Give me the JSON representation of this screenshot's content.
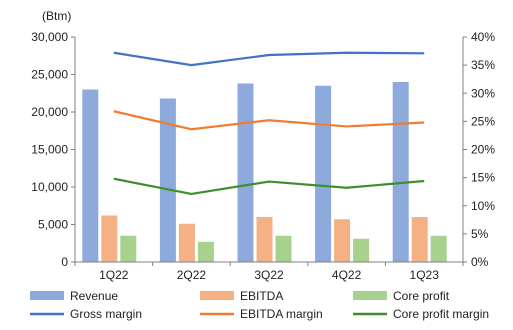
{
  "chart_data": {
    "type": "bar",
    "unit_label": "(Btm)",
    "categories": [
      "1Q22",
      "2Q22",
      "3Q22",
      "4Q22",
      "1Q23"
    ],
    "y_left": {
      "min": 0,
      "max": 30000,
      "ticks": [
        "0",
        "5,000",
        "10,000",
        "15,000",
        "20,000",
        "25,000",
        "30,000"
      ]
    },
    "y_right": {
      "min": 0,
      "max": 40,
      "ticks": [
        "0%",
        "5%",
        "10%",
        "15%",
        "20%",
        "25%",
        "30%",
        "35%",
        "40%"
      ]
    },
    "bar_series": [
      {
        "name": "Revenue",
        "color": "#8EA9DB",
        "values": [
          23000,
          21800,
          23800,
          23500,
          24000
        ]
      },
      {
        "name": "EBITDA",
        "color": "#F4B183",
        "values": [
          6200,
          5100,
          6000,
          5700,
          6000
        ]
      },
      {
        "name": "Core profit",
        "color": "#A9D18E",
        "values": [
          3500,
          2700,
          3500,
          3100,
          3500
        ]
      }
    ],
    "line_series": [
      {
        "name": "Gross margin",
        "color": "#4472C4",
        "values": [
          37.2,
          35.0,
          36.8,
          37.2,
          37.1
        ]
      },
      {
        "name": "EBITDA margin",
        "color": "#ED7D31",
        "values": [
          26.8,
          23.6,
          25.2,
          24.1,
          24.8
        ]
      },
      {
        "name": "Core profit margin",
        "color": "#3E8E2E",
        "values": [
          14.8,
          12.1,
          14.3,
          13.2,
          14.4
        ]
      }
    ],
    "legend_position": "bottom",
    "grid": false
  }
}
